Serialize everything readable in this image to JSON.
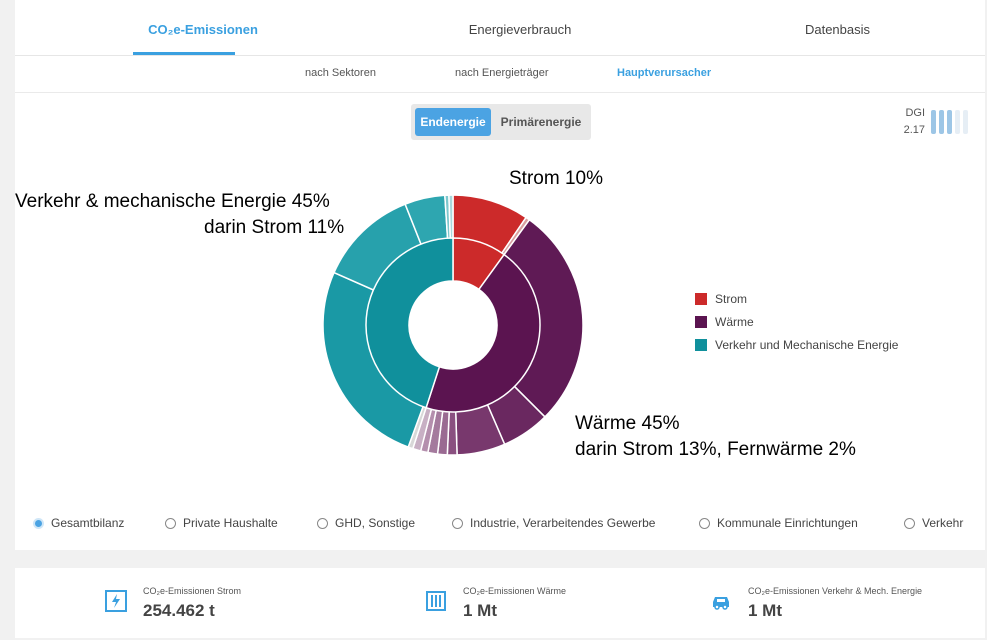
{
  "tabs": [
    {
      "label": "CO₂e-Emissionen",
      "active": true
    },
    {
      "label": "Energieverbrauch",
      "active": false
    },
    {
      "label": "Datenbasis",
      "active": false
    }
  ],
  "subtabs": [
    {
      "label": "nach Sektoren",
      "active": false
    },
    {
      "label": "nach Energieträger",
      "active": false
    },
    {
      "label": "Hauptverursacher",
      "active": true
    }
  ],
  "toggle": {
    "on_label": "Endenergie",
    "off_label": "Primärenergie"
  },
  "dgi": {
    "label": "DGI",
    "value": "2.17",
    "level": 3,
    "max": 5,
    "color_on": "#9dc6e6",
    "color_off": "#e6eef5"
  },
  "annotations": {
    "verkehr_line1": "Verkehr & mechanische Energie 45%",
    "verkehr_line2": "darin Strom 11%",
    "strom": "Strom 10%",
    "waerme_line1": "Wärme 45%",
    "waerme_line2": "darin Strom 13%, Fernwärme 2%"
  },
  "legend": [
    {
      "label": "Strom",
      "color": "#cc2a2a"
    },
    {
      "label": "Wärme",
      "color": "#5b1450"
    },
    {
      "label": "Verkehr und Mechanische Energie",
      "color": "#10909c"
    }
  ],
  "chart_data": {
    "type": "pie",
    "inner_ring": [
      {
        "name": "Strom",
        "value": 10,
        "color": "#cc2a2a"
      },
      {
        "name": "Wärme",
        "value": 45,
        "color": "#5b1450"
      },
      {
        "name": "Verkehr und Mechanische Energie",
        "value": 45,
        "color": "#10909c"
      }
    ],
    "outer_ring": [
      {
        "group": "Strom",
        "value": 9.5,
        "color": "#cc2a2a"
      },
      {
        "group": "Strom",
        "value": 0.5,
        "color": "#d8a0a0"
      },
      {
        "group": "Wärme",
        "value": 27.5,
        "color": "#5f1a55"
      },
      {
        "group": "Wärme",
        "value": 6.0,
        "color": "#6a2860"
      },
      {
        "group": "Wärme",
        "value": 6.0,
        "color": "#78386d"
      },
      {
        "group": "Wärme",
        "value": 1.2,
        "color": "#8a5080"
      },
      {
        "group": "Wärme",
        "value": 1.2,
        "color": "#9a6a92"
      },
      {
        "group": "Wärme",
        "value": 1.2,
        "color": "#a47a9d"
      },
      {
        "group": "Wärme",
        "value": 0.9,
        "color": "#b48fad"
      },
      {
        "group": "Wärme",
        "value": 1.0,
        "color": "#c8b0c4"
      },
      {
        "group": "Verkehr und Mechanische Energie",
        "value": 0.6,
        "color": "#d8d8d8"
      },
      {
        "group": "Verkehr und Mechanische Energie",
        "value": 26.0,
        "color": "#1a99a5"
      },
      {
        "group": "Verkehr und Mechanische Energie",
        "value": 12.4,
        "color": "#27a1ac"
      },
      {
        "group": "Verkehr und Mechanische Energie",
        "value": 5.0,
        "color": "#2ea6b0"
      },
      {
        "group": "Verkehr und Mechanische Energie",
        "value": 0.5,
        "color": "#7cc7cd"
      },
      {
        "group": "Verkehr und Mechanische Energie",
        "value": 0.5,
        "color": "#a8d8dc"
      }
    ]
  },
  "filters": [
    {
      "label": "Gesamtbilanz",
      "checked": true
    },
    {
      "label": "Private Haushalte",
      "checked": false
    },
    {
      "label": "GHD, Sonstige",
      "checked": false
    },
    {
      "label": "Industrie, Verarbeitendes Gewerbe",
      "checked": false
    },
    {
      "label": "Kommunale Einrichtungen",
      "checked": false
    },
    {
      "label": "Verkehr",
      "checked": false
    }
  ],
  "stats": [
    {
      "label": "CO₂e-Emissionen Strom",
      "value": "254.462 t",
      "icon": "lightning-icon"
    },
    {
      "label": "CO₂e-Emissionen Wärme",
      "value": "1 Mt",
      "icon": "radiator-icon"
    },
    {
      "label": "CO₂e-Emissionen Verkehr & Mech. Energie",
      "value": "1 Mt",
      "icon": "car-icon"
    }
  ],
  "colors": {
    "accent": "#3aa0e0"
  }
}
